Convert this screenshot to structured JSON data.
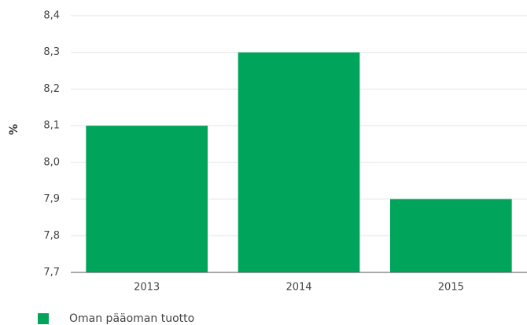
{
  "chart_data": {
    "type": "bar",
    "y_label": "%",
    "categories": [
      "2013",
      "2014",
      "2015"
    ],
    "series": [
      {
        "name": "Oman pääoman tuotto",
        "color": "#00a55b",
        "values": [
          8.1,
          8.3,
          7.9
        ]
      }
    ],
    "ylim": [
      7.7,
      8.4
    ],
    "yticks": [
      {
        "value": 7.7,
        "label": "7,7"
      },
      {
        "value": 7.8,
        "label": "7,8"
      },
      {
        "value": 7.9,
        "label": "7,9"
      },
      {
        "value": 8.0,
        "label": "8,0"
      },
      {
        "value": 8.1,
        "label": "8,1"
      },
      {
        "value": 8.2,
        "label": "8,2"
      },
      {
        "value": 8.3,
        "label": "8,3"
      },
      {
        "value": 8.4,
        "label": "8,4"
      }
    ],
    "grid": true
  }
}
